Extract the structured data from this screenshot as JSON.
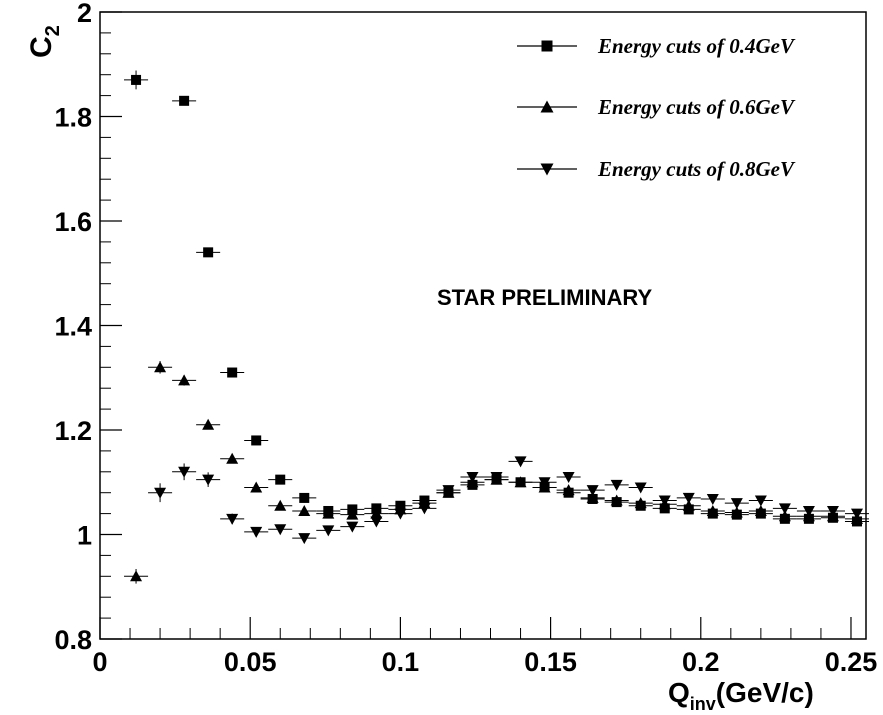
{
  "chart_data": {
    "type": "scatter",
    "title": "",
    "xlabel": "Q",
    "xlabel_sub": "inv",
    "xlabel_unit": "(GeV/c)",
    "ylabel": "C",
    "ylabel_sub": "2",
    "xlim": [
      0,
      0.255
    ],
    "ylim": [
      0.8,
      2.0
    ],
    "xticks": [
      {
        "value": 0,
        "label": "0"
      },
      {
        "value": 0.05,
        "label": "0.05"
      },
      {
        "value": 0.1,
        "label": "0.1"
      },
      {
        "value": 0.15,
        "label": "0.15"
      },
      {
        "value": 0.2,
        "label": "0.2"
      },
      {
        "value": 0.25,
        "label": "0.25"
      }
    ],
    "yticks": [
      {
        "value": 0.8,
        "label": "0.8"
      },
      {
        "value": 1.0,
        "label": "1"
      },
      {
        "value": 1.2,
        "label": "1.2"
      },
      {
        "value": 1.4,
        "label": "1.4"
      },
      {
        "value": 1.6,
        "label": "1.6"
      },
      {
        "value": 1.8,
        "label": "1.8"
      },
      {
        "value": 2.0,
        "label": "2"
      }
    ],
    "grid": false,
    "legend_position": "top-right",
    "annotation": "STAR PRELIMINARY",
    "x_bin_halfwidth": 0.004,
    "series": [
      {
        "name": "Energy cuts of 0.4GeV",
        "marker": "square",
        "x": [
          0.012,
          0.028,
          0.036,
          0.044,
          0.052,
          0.06,
          0.068,
          0.076,
          0.084,
          0.092,
          0.1,
          0.108,
          0.116,
          0.124,
          0.132,
          0.14,
          0.148,
          0.156,
          0.164,
          0.172,
          0.18,
          0.188,
          0.196,
          0.204,
          0.212,
          0.22,
          0.228,
          0.236,
          0.244,
          0.252
        ],
        "y": [
          1.87,
          1.83,
          1.54,
          1.31,
          1.18,
          1.105,
          1.07,
          1.045,
          1.048,
          1.05,
          1.055,
          1.065,
          1.08,
          1.095,
          1.105,
          1.1,
          1.09,
          1.08,
          1.068,
          1.062,
          1.055,
          1.05,
          1.048,
          1.04,
          1.038,
          1.04,
          1.03,
          1.03,
          1.032,
          1.025
        ],
        "err": [
          0.018,
          0.008,
          0.006,
          0.005,
          0.005,
          0.005,
          0.005,
          0.005,
          0.005,
          0.005,
          0.005,
          0.005,
          0.005,
          0.005,
          0.005,
          0.005,
          0.005,
          0.005,
          0.005,
          0.005,
          0.005,
          0.005,
          0.005,
          0.005,
          0.005,
          0.005,
          0.005,
          0.005,
          0.005,
          0.005
        ]
      },
      {
        "name": "Energy cuts of 0.6GeV",
        "marker": "triangle-up",
        "x": [
          0.012,
          0.02,
          0.028,
          0.036,
          0.044,
          0.052,
          0.06,
          0.068,
          0.076,
          0.084,
          0.092,
          0.1,
          0.108,
          0.116,
          0.124,
          0.132,
          0.14,
          0.148,
          0.156,
          0.164,
          0.172,
          0.18,
          0.188,
          0.196,
          0.204,
          0.212,
          0.22,
          0.228,
          0.236,
          0.244,
          0.252
        ],
        "y": [
          0.92,
          1.32,
          1.295,
          1.21,
          1.145,
          1.09,
          1.055,
          1.045,
          1.04,
          1.038,
          1.04,
          1.048,
          1.06,
          1.08,
          1.1,
          1.105,
          1.1,
          1.09,
          1.085,
          1.07,
          1.065,
          1.06,
          1.058,
          1.055,
          1.045,
          1.042,
          1.045,
          1.035,
          1.035,
          1.035,
          1.03
        ],
        "err": [
          0.014,
          0.012,
          0.01,
          0.008,
          0.007,
          0.006,
          0.006,
          0.006,
          0.006,
          0.006,
          0.006,
          0.006,
          0.006,
          0.006,
          0.006,
          0.006,
          0.006,
          0.006,
          0.006,
          0.006,
          0.006,
          0.006,
          0.006,
          0.006,
          0.006,
          0.006,
          0.006,
          0.006,
          0.006,
          0.006,
          0.006
        ]
      },
      {
        "name": "Energy cuts of 0.8GeV",
        "marker": "triangle-down",
        "x": [
          0.02,
          0.028,
          0.036,
          0.044,
          0.052,
          0.06,
          0.068,
          0.076,
          0.084,
          0.092,
          0.1,
          0.108,
          0.116,
          0.124,
          0.132,
          0.14,
          0.148,
          0.156,
          0.164,
          0.172,
          0.18,
          0.188,
          0.196,
          0.204,
          0.212,
          0.22,
          0.228,
          0.236,
          0.244,
          0.252
        ],
        "y": [
          1.08,
          1.12,
          1.105,
          1.03,
          1.005,
          1.01,
          0.993,
          1.008,
          1.015,
          1.025,
          1.04,
          1.05,
          1.085,
          1.11,
          1.11,
          1.14,
          1.1,
          1.11,
          1.085,
          1.095,
          1.09,
          1.065,
          1.07,
          1.068,
          1.06,
          1.065,
          1.05,
          1.045,
          1.045,
          1.04
        ],
        "err": [
          0.018,
          0.016,
          0.014,
          0.01,
          0.009,
          0.008,
          0.008,
          0.008,
          0.008,
          0.008,
          0.008,
          0.008,
          0.008,
          0.008,
          0.008,
          0.008,
          0.008,
          0.008,
          0.008,
          0.008,
          0.008,
          0.008,
          0.008,
          0.008,
          0.008,
          0.008,
          0.008,
          0.008,
          0.008,
          0.008
        ]
      }
    ]
  }
}
